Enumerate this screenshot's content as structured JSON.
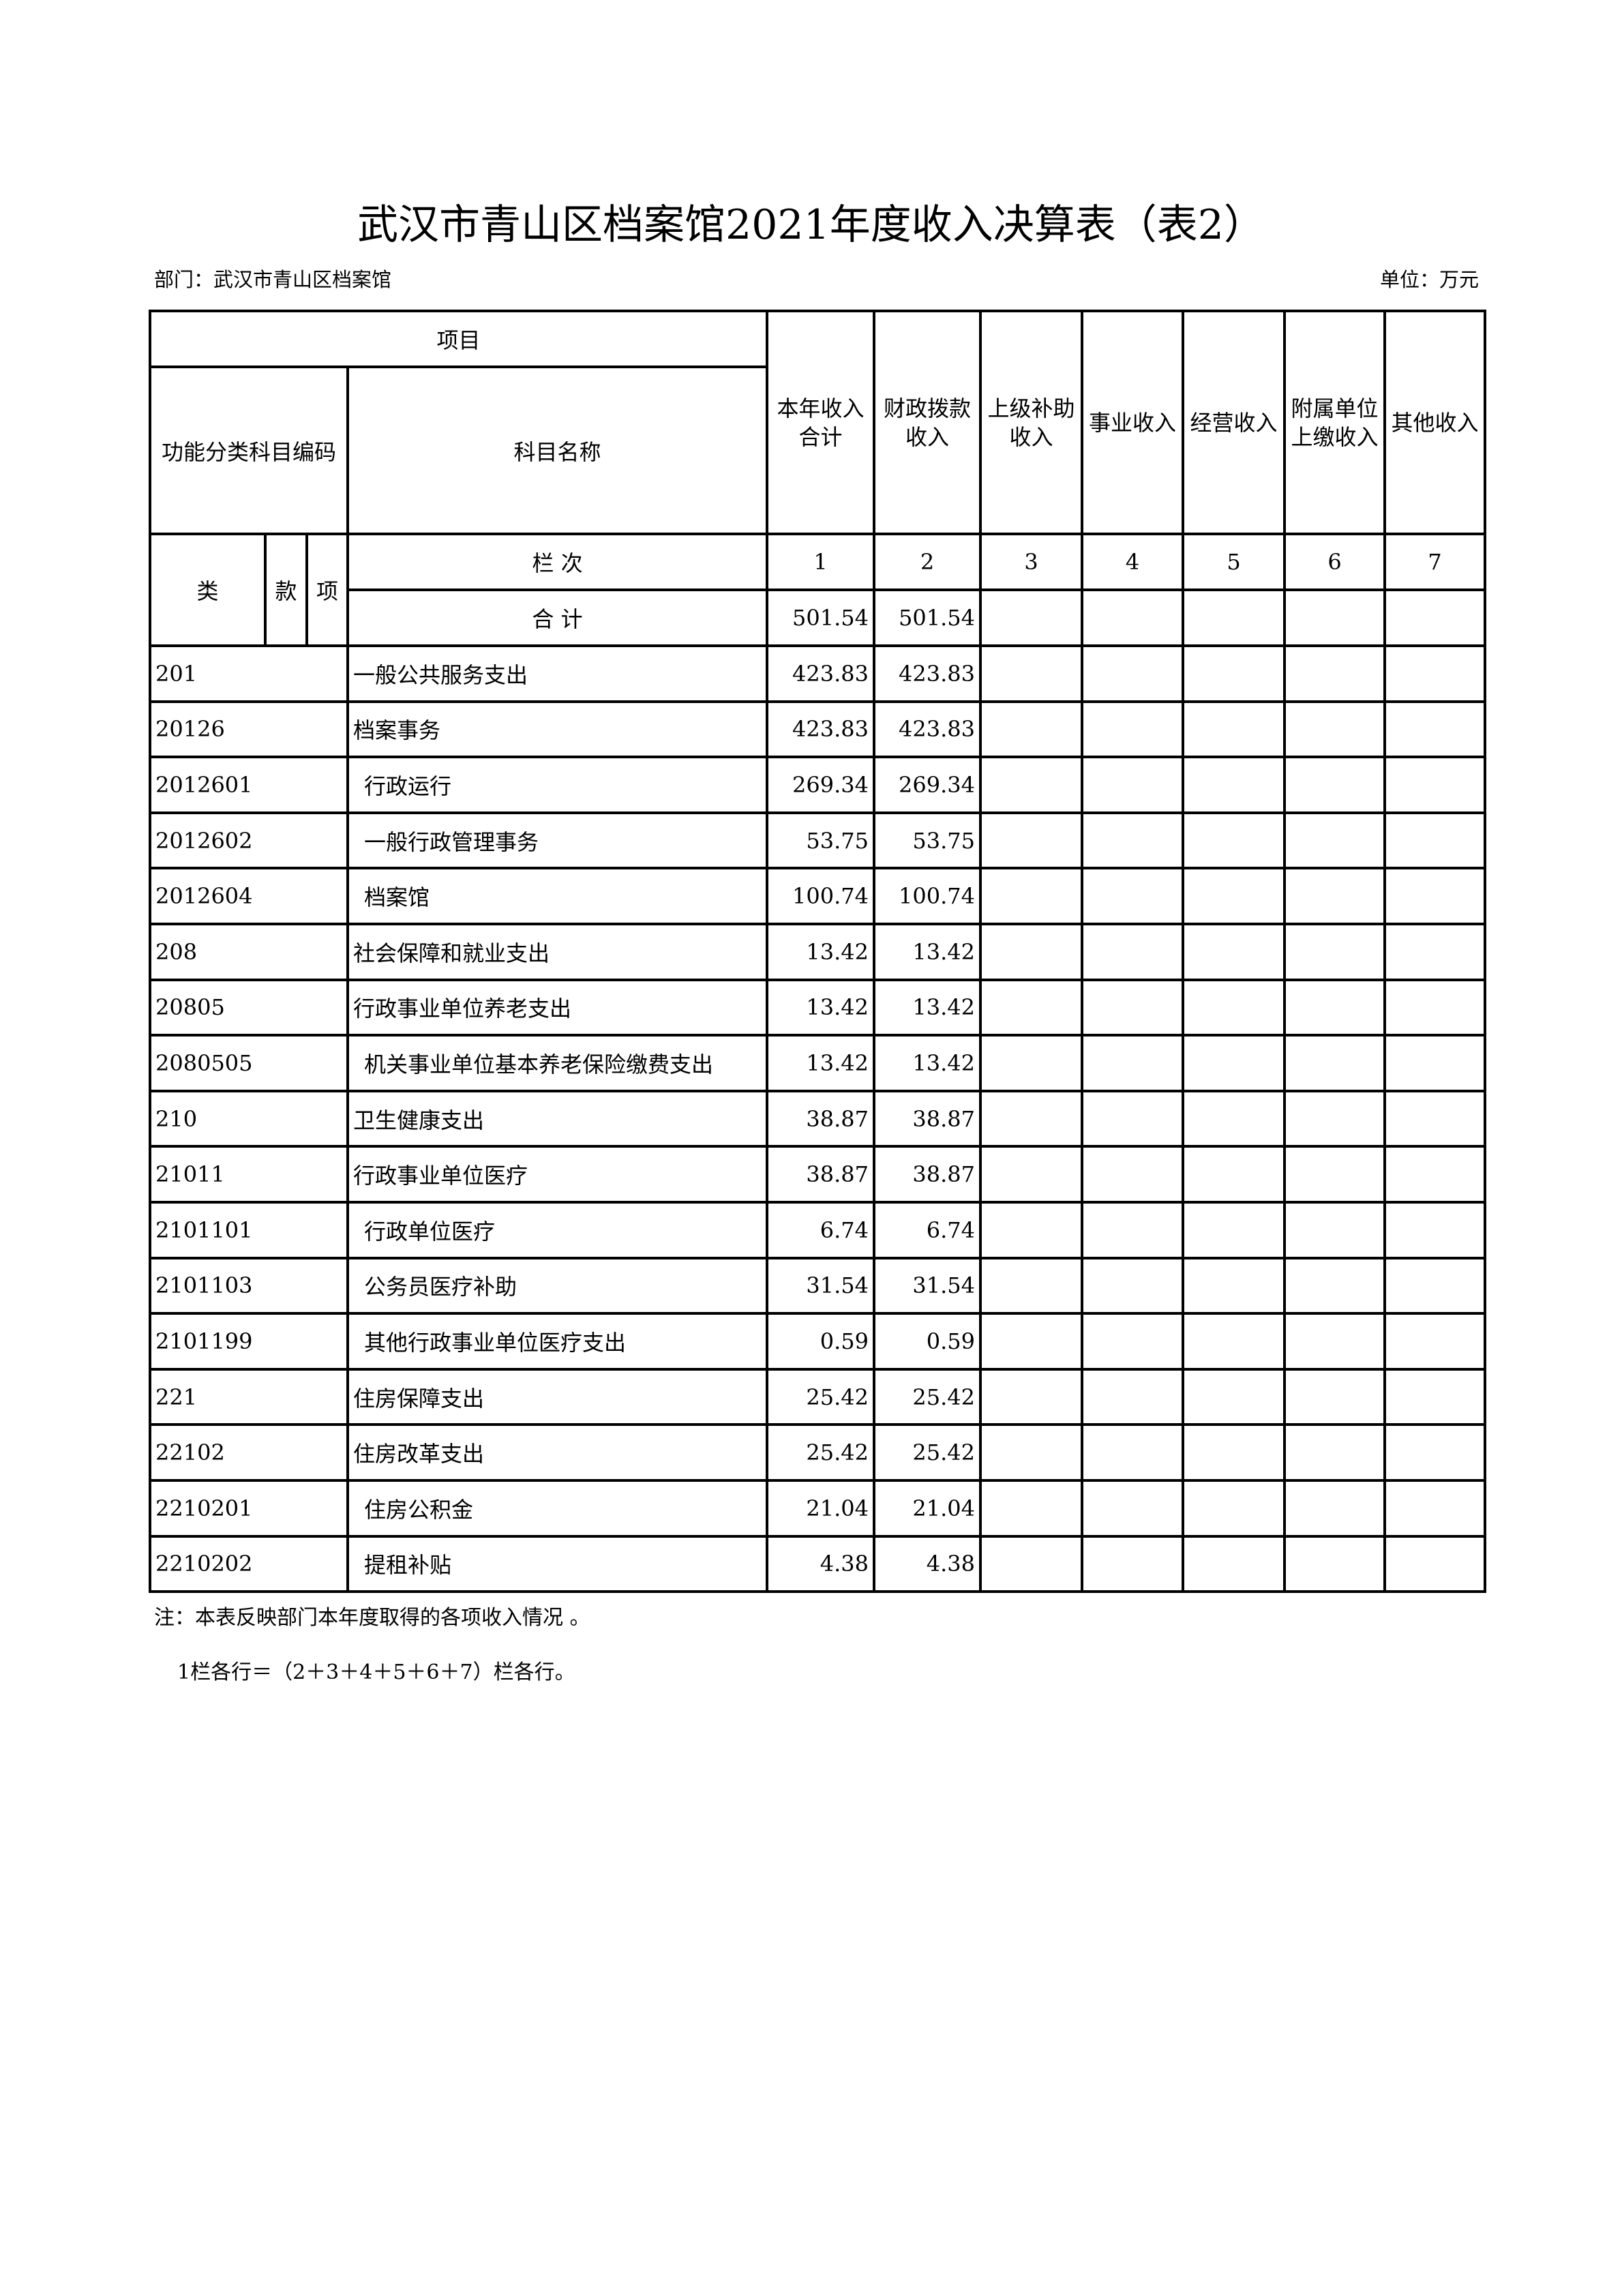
{
  "title": "武汉市青山区档案馆2021年度收入决算表（表2）",
  "department": "部门：武汉市青山区档案馆",
  "unit": "单位：万元",
  "header": {
    "item": "项目",
    "code": "功能分类科目编码",
    "name": "科目名称",
    "columns": [
      "本年收入合计",
      "财政拨款收入",
      "上级补助收入",
      "事业收入",
      "经营收入",
      "附属单位上缴收入",
      "其他收入"
    ],
    "lei": "类",
    "kuan": "款",
    "xiang": "项",
    "lanci": "栏 次",
    "col_numbers": [
      "1",
      "2",
      "3",
      "4",
      "5",
      "6",
      "7"
    ],
    "total_label": "合 计",
    "total_values": [
      "501.54",
      "501.54",
      "",
      "",
      "",
      "",
      ""
    ]
  },
  "rows": [
    {
      "code": "201",
      "name": "一般公共服务支出",
      "indent": false,
      "v1": "423.83",
      "v2": "423.83"
    },
    {
      "code": "20126",
      "name": "档案事务",
      "indent": false,
      "v1": "423.83",
      "v2": "423.83"
    },
    {
      "code": "2012601",
      "name": "行政运行",
      "indent": true,
      "v1": "269.34",
      "v2": "269.34"
    },
    {
      "code": "2012602",
      "name": "一般行政管理事务",
      "indent": true,
      "v1": "53.75",
      "v2": "53.75"
    },
    {
      "code": "2012604",
      "name": "档案馆",
      "indent": true,
      "v1": "100.74",
      "v2": "100.74"
    },
    {
      "code": "208",
      "name": "社会保障和就业支出",
      "indent": false,
      "v1": "13.42",
      "v2": "13.42"
    },
    {
      "code": "20805",
      "name": "行政事业单位养老支出",
      "indent": false,
      "v1": "13.42",
      "v2": "13.42"
    },
    {
      "code": "2080505",
      "name": "机关事业单位基本养老保险缴费支出",
      "indent": true,
      "v1": "13.42",
      "v2": "13.42"
    },
    {
      "code": "210",
      "name": "卫生健康支出",
      "indent": false,
      "v1": "38.87",
      "v2": "38.87"
    },
    {
      "code": "21011",
      "name": "行政事业单位医疗",
      "indent": false,
      "v1": "38.87",
      "v2": "38.87"
    },
    {
      "code": "2101101",
      "name": "行政单位医疗",
      "indent": true,
      "v1": "6.74",
      "v2": "6.74"
    },
    {
      "code": "2101103",
      "name": "公务员医疗补助",
      "indent": true,
      "v1": "31.54",
      "v2": "31.54"
    },
    {
      "code": "2101199",
      "name": "其他行政事业单位医疗支出",
      "indent": true,
      "v1": "0.59",
      "v2": "0.59"
    },
    {
      "code": "221",
      "name": "住房保障支出",
      "indent": false,
      "v1": "25.42",
      "v2": "25.42"
    },
    {
      "code": "22102",
      "name": "住房改革支出",
      "indent": false,
      "v1": "25.42",
      "v2": "25.42"
    },
    {
      "code": "2210201",
      "name": "住房公积金",
      "indent": true,
      "v1": "21.04",
      "v2": "21.04"
    },
    {
      "code": "2210202",
      "name": "提租补贴",
      "indent": true,
      "v1": "4.38",
      "v2": "4.38"
    }
  ],
  "notes": [
    "注：本表反映部门本年度取得的各项收入情况 。",
    "1栏各行＝（2＋3＋4＋5＋6＋7）栏各行。"
  ]
}
